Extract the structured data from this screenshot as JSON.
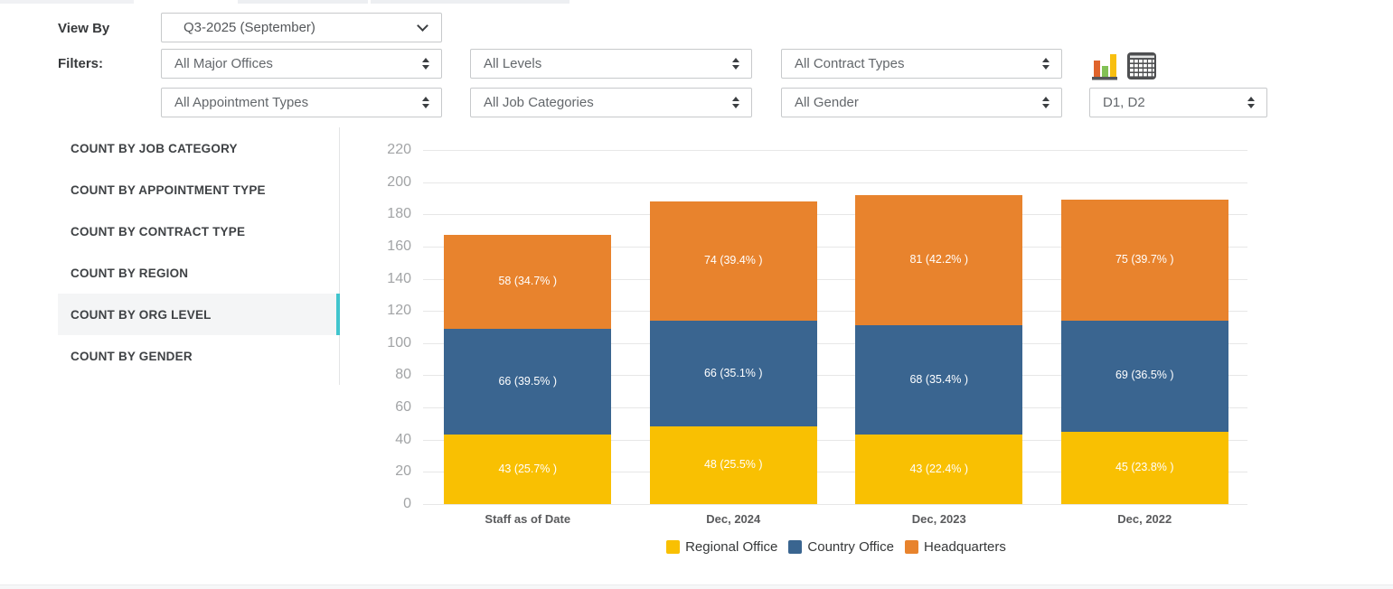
{
  "controls": {
    "view_by_label": "View By",
    "filters_label": "Filters:",
    "view_by": {
      "value": "Q3-2025 (September)"
    },
    "filters": {
      "major_offices": {
        "value": "All Major Offices"
      },
      "levels": {
        "value": "All Levels"
      },
      "contract_types": {
        "value": "All Contract Types"
      },
      "appointment_types": {
        "value": "All Appointment Types"
      },
      "job_categories": {
        "value": "All Job Categories"
      },
      "gender": {
        "value": "All Gender"
      },
      "org_levels": {
        "value": "D1, D2"
      }
    },
    "icons": {
      "chart_view": "bar-chart-icon",
      "table_view": "table-icon"
    }
  },
  "sidebar": {
    "accent_color": "#41c5cd",
    "items": [
      {
        "label": "COUNT BY JOB CATEGORY",
        "selected": false
      },
      {
        "label": "COUNT BY APPOINTMENT TYPE",
        "selected": false
      },
      {
        "label": "COUNT BY CONTRACT TYPE",
        "selected": false
      },
      {
        "label": "COUNT BY REGION",
        "selected": false
      },
      {
        "label": "COUNT BY ORG LEVEL",
        "selected": true
      },
      {
        "label": "COUNT BY GENDER",
        "selected": false
      }
    ]
  },
  "chart_data": {
    "type": "bar",
    "stacked": true,
    "categories": [
      "Staff as of Date",
      "Dec, 2024",
      "Dec, 2023",
      "Dec, 2022"
    ],
    "series": [
      {
        "name": "Regional Office",
        "color": "#f9c002",
        "values": [
          43,
          48,
          43,
          45
        ],
        "labels": [
          "43 (25.7% )",
          "48 (25.5% )",
          "43 (22.4% )",
          "45 (23.8% )"
        ]
      },
      {
        "name": "Country Office",
        "color": "#3a6590",
        "values": [
          66,
          66,
          68,
          69
        ],
        "labels": [
          "66 (39.5% )",
          "66 (35.1% )",
          "68 (35.4% )",
          "69 (36.5% )"
        ]
      },
      {
        "name": "Headquarters",
        "color": "#e8832d",
        "values": [
          58,
          74,
          81,
          75
        ],
        "labels": [
          "58 (34.7% )",
          "74 (39.4% )",
          "81 (42.2% )",
          "75 (39.7% )"
        ]
      }
    ],
    "totals": [
      167,
      188,
      192,
      189
    ],
    "ylim": [
      0,
      220
    ],
    "ytick_step": 20,
    "grid": true,
    "legend_position": "bottom",
    "title": "",
    "xlabel": "",
    "ylabel": ""
  }
}
